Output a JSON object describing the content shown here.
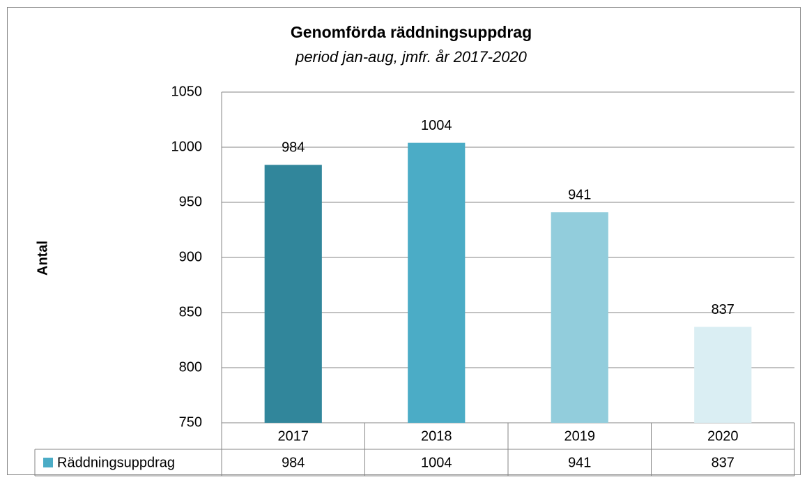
{
  "chart_data": {
    "type": "bar",
    "title": "Genomförda räddningsuppdrag",
    "subtitle": "period jan-aug, jmfr. år 2017-2020",
    "y_label": "Antal",
    "categories": [
      "2017",
      "2018",
      "2019",
      "2020"
    ],
    "series": [
      {
        "name": "Räddningsuppdrag",
        "color": "#4bacc6",
        "colors": [
          "#31869b",
          "#4bacc6",
          "#92cddc",
          "#daeef3"
        ],
        "values": [
          984,
          1004,
          941,
          837
        ]
      }
    ],
    "ylim": [
      750,
      1050
    ],
    "yticks": [
      750,
      800,
      850,
      900,
      950,
      1000,
      1050
    ],
    "grid": true
  }
}
